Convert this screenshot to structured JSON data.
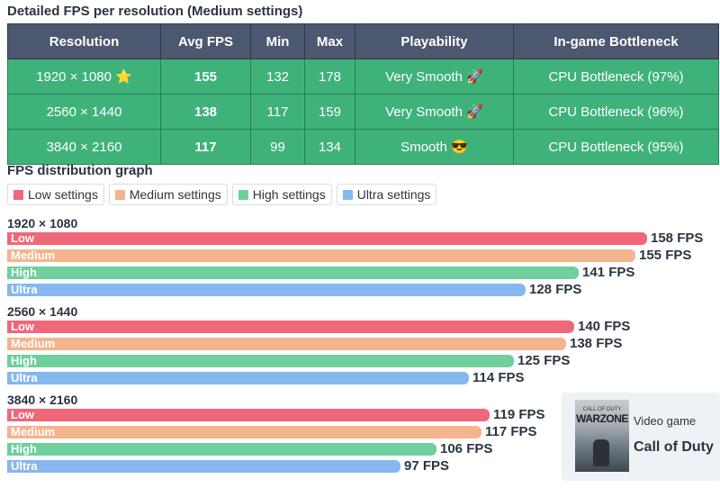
{
  "table": {
    "title": "Detailed FPS per resolution (Medium settings)",
    "headers": [
      "Resolution",
      "Avg FPS",
      "Min",
      "Max",
      "Playability",
      "In-game Bottleneck"
    ],
    "rows": [
      {
        "resolution": "1920 × 1080 ⭐",
        "avg": "155",
        "min": "132",
        "max": "178",
        "playability": "Very Smooth 🚀",
        "bottleneck": "CPU Bottleneck (97%)"
      },
      {
        "resolution": "2560 × 1440",
        "avg": "138",
        "min": "117",
        "max": "159",
        "playability": "Very Smooth 🚀",
        "bottleneck": "CPU Bottleneck (96%)"
      },
      {
        "resolution": "3840 × 2160",
        "avg": "117",
        "min": "99",
        "max": "134",
        "playability": "Smooth 😎",
        "bottleneck": "CPU Bottleneck (95%)"
      }
    ]
  },
  "graph_title": "FPS distribution graph",
  "legend": [
    {
      "label": "Low settings",
      "color": "#f0677a"
    },
    {
      "label": "Medium settings",
      "color": "#f4b48d"
    },
    {
      "label": "High settings",
      "color": "#6fcf9d"
    },
    {
      "label": "Ultra settings",
      "color": "#86b7ee"
    }
  ],
  "chart_data": {
    "type": "bar",
    "orientation": "horizontal",
    "title": "FPS distribution graph",
    "unit": "FPS",
    "groups": [
      "1920 × 1080",
      "2560 × 1440",
      "3840 × 2160"
    ],
    "series": [
      {
        "name": "Low",
        "color": "#f0677a",
        "values": [
          158,
          140,
          119
        ]
      },
      {
        "name": "Medium",
        "color": "#f4b48d",
        "values": [
          155,
          138,
          117
        ]
      },
      {
        "name": "High",
        "color": "#6fcf9d",
        "values": [
          141,
          125,
          106
        ]
      },
      {
        "name": "Ultra",
        "color": "#86b7ee",
        "values": [
          128,
          114,
          97
        ]
      }
    ],
    "value_labels": [
      [
        "158 FPS",
        "155 FPS",
        "141 FPS",
        "128 FPS"
      ],
      [
        "140 FPS",
        "138 FPS",
        "125 FPS",
        "114 FPS"
      ],
      [
        "119 FPS",
        "117 FPS",
        "106 FPS",
        "97 FPS"
      ]
    ],
    "xlim": [
      0,
      158
    ]
  },
  "game": {
    "type": "Video game",
    "name": "Call of Duty",
    "cover_text_top": "CALL OF DUTY",
    "cover_text": "WARZONE"
  }
}
